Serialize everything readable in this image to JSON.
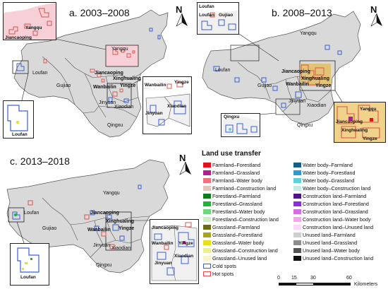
{
  "panels": [
    {
      "id": "a",
      "title": "a. 2003–2008"
    },
    {
      "id": "b",
      "title": "b. 2008–2013"
    },
    {
      "id": "c",
      "title": "c. 2013–2018"
    }
  ],
  "north_label": "N",
  "places": {
    "yangqu": "Yangqu",
    "loufan": "Loufan",
    "gujiao": "Gujiao",
    "jiancaoping": "Jiancaoping",
    "wanbailin": "Wanbailin",
    "xinghualing": "Xinghualing",
    "yingze": "Yingze",
    "jinyuan": "Jinyuan",
    "xiaodian": "Xiaodian",
    "qingxu": "Qingxu"
  },
  "legend": {
    "title": "Land use transfer",
    "left_column": [
      {
        "label": "Farmland–Forestland",
        "color": "#e4121b",
        "kind": "fill"
      },
      {
        "label": "Farmland–Grassland",
        "color": "#b41e8f",
        "kind": "fill"
      },
      {
        "label": "Farmland–Water body",
        "color": "#f0707c",
        "kind": "fill"
      },
      {
        "label": "Farmland–Construction land",
        "color": "#e7c4b8",
        "kind": "fill"
      },
      {
        "label": "Forestland–Farmland",
        "color": "#0f7a1e",
        "kind": "fill"
      },
      {
        "label": "Forestland–Grassland",
        "color": "#1fb33a",
        "kind": "fill"
      },
      {
        "label": "Forestland–Water body",
        "color": "#72d47c",
        "kind": "fill"
      },
      {
        "label": "Forestland–Construction land",
        "color": "#cdefc4",
        "kind": "fill"
      },
      {
        "label": "Grassland–Farmland",
        "color": "#6b6a1a",
        "kind": "fill"
      },
      {
        "label": "Grassland–Forestland",
        "color": "#a8a51c",
        "kind": "fill"
      },
      {
        "label": "Grassland–Water body",
        "color": "#e6e01c",
        "kind": "fill"
      },
      {
        "label": "Grassland–Construction land",
        "color": "#f1ef8c",
        "kind": "fill"
      },
      {
        "label": "Grassland–Unused land",
        "color": "#f8f6c8",
        "kind": "fill"
      },
      {
        "label": "Cold spots",
        "color": "#3a5fd6",
        "kind": "outline"
      },
      {
        "label": "Hot spots",
        "color": "#d9534f",
        "kind": "outline"
      }
    ],
    "right_column": [
      {
        "label": "Water body–Farmland",
        "color": "#17607f",
        "kind": "fill"
      },
      {
        "label": "Water body–Forestland",
        "color": "#2b9bd0",
        "kind": "fill"
      },
      {
        "label": "Water body–Grassland",
        "color": "#5fd0d6",
        "kind": "fill"
      },
      {
        "label": "Water body–Construction land",
        "color": "#c2ece6",
        "kind": "fill"
      },
      {
        "label": "Construction land–Farmland",
        "color": "#4b1780",
        "kind": "fill"
      },
      {
        "label": "Construction land–Forestland",
        "color": "#8a2fd4",
        "kind": "fill"
      },
      {
        "label": "Construction land–Grassland",
        "color": "#d46fe0",
        "kind": "fill"
      },
      {
        "label": "Construction land–Water body",
        "color": "#f0a7ee",
        "kind": "fill"
      },
      {
        "label": "Construction land–Unused land",
        "color": "#f9d9f6",
        "kind": "fill"
      },
      {
        "label": "Unused land–Farmland",
        "color": "#cfcfcf",
        "kind": "fill"
      },
      {
        "label": "Unused land–Grassland",
        "color": "#8d8d8d",
        "kind": "fill"
      },
      {
        "label": "Unused land–Water body",
        "color": "#555555",
        "kind": "fill"
      },
      {
        "label": "Unused land–Construction land",
        "color": "#111111",
        "kind": "fill"
      }
    ]
  },
  "scale": {
    "ticks": [
      "0",
      "15",
      "30",
      "60"
    ],
    "unit": "Kilometers"
  }
}
